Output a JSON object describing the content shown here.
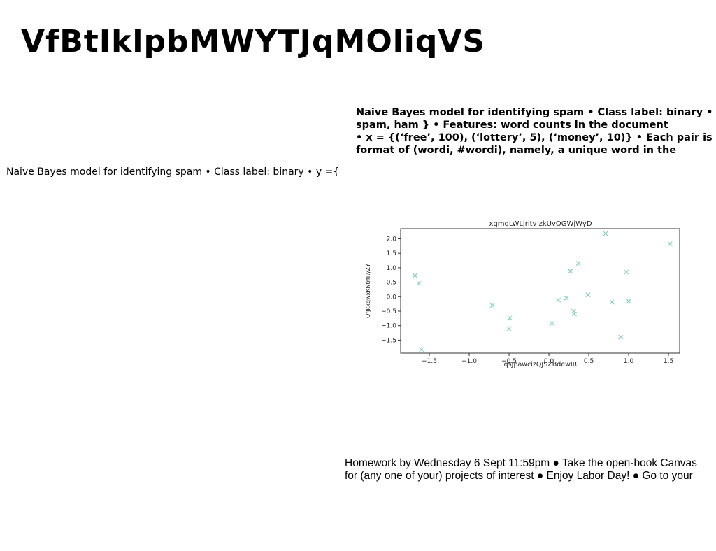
{
  "slide": {
    "title": "VfBtIklpbMWYTJqMOliqVS",
    "bold_text": "Naive Bayes model for identifying spam • Class label: binary • y\nspam, ham } • Features: word counts in the document\n• x = {(‘free’, 100), (‘lottery’, 5), (‘money’, 10)} • Each pair is in\nformat of (wordi, #wordi), namely, a unique word in the",
    "plain_text": "Naive Bayes model for identifying spam • Class label: binary • y ={",
    "homework_text": "Homework by Wednesday 6 Sept 11:59pm ● Take the open-book Canvas\nfor (any one of your) projects of interest ● Enjoy Labor Day! ● Go to your"
  },
  "chart_data": {
    "type": "scatter",
    "title": "xqmgLWLjritv zkUvOGWjWyD",
    "xlabel": "qsJpawcizQJSZBdewIR",
    "ylabel": "QfJkxqwxKNtrfRyZY",
    "xlim": [
      -1.86,
      1.64
    ],
    "ylim": [
      -1.95,
      2.35
    ],
    "xticks": [
      -1.5,
      -1.0,
      -0.5,
      0.0,
      0.5,
      1.0,
      1.5
    ],
    "yticks": [
      -1.5,
      -1.0,
      -0.5,
      0.0,
      0.5,
      1.0,
      1.5,
      2.0
    ],
    "xtick_labels": [
      "−1.5",
      "−1.0",
      "−0.5",
      "0.0",
      "0.5",
      "1.0",
      "1.5"
    ],
    "ytick_labels": [
      "−1.5",
      "−1.0",
      "−0.5",
      "0.0",
      "0.5",
      "1.0",
      "1.5",
      "2.0"
    ],
    "marker": "x",
    "color": "#7fd3b5",
    "points": [
      {
        "x": -1.68,
        "y": 0.73
      },
      {
        "x": -1.63,
        "y": 0.46
      },
      {
        "x": -1.6,
        "y": -1.82
      },
      {
        "x": -0.71,
        "y": -0.3
      },
      {
        "x": -0.49,
        "y": -0.74
      },
      {
        "x": -0.5,
        "y": -1.11
      },
      {
        "x": 0.04,
        "y": -0.92
      },
      {
        "x": 0.12,
        "y": -0.12
      },
      {
        "x": 0.22,
        "y": -0.05
      },
      {
        "x": 0.27,
        "y": 0.88
      },
      {
        "x": 0.31,
        "y": -0.5
      },
      {
        "x": 0.32,
        "y": -0.6
      },
      {
        "x": 0.37,
        "y": 1.15
      },
      {
        "x": 0.49,
        "y": 0.06
      },
      {
        "x": 0.71,
        "y": 2.18
      },
      {
        "x": 0.79,
        "y": -0.19
      },
      {
        "x": 0.9,
        "y": -1.4
      },
      {
        "x": 0.97,
        "y": 0.85
      },
      {
        "x": 1.0,
        "y": -0.16
      },
      {
        "x": 1.52,
        "y": 1.83
      }
    ]
  }
}
